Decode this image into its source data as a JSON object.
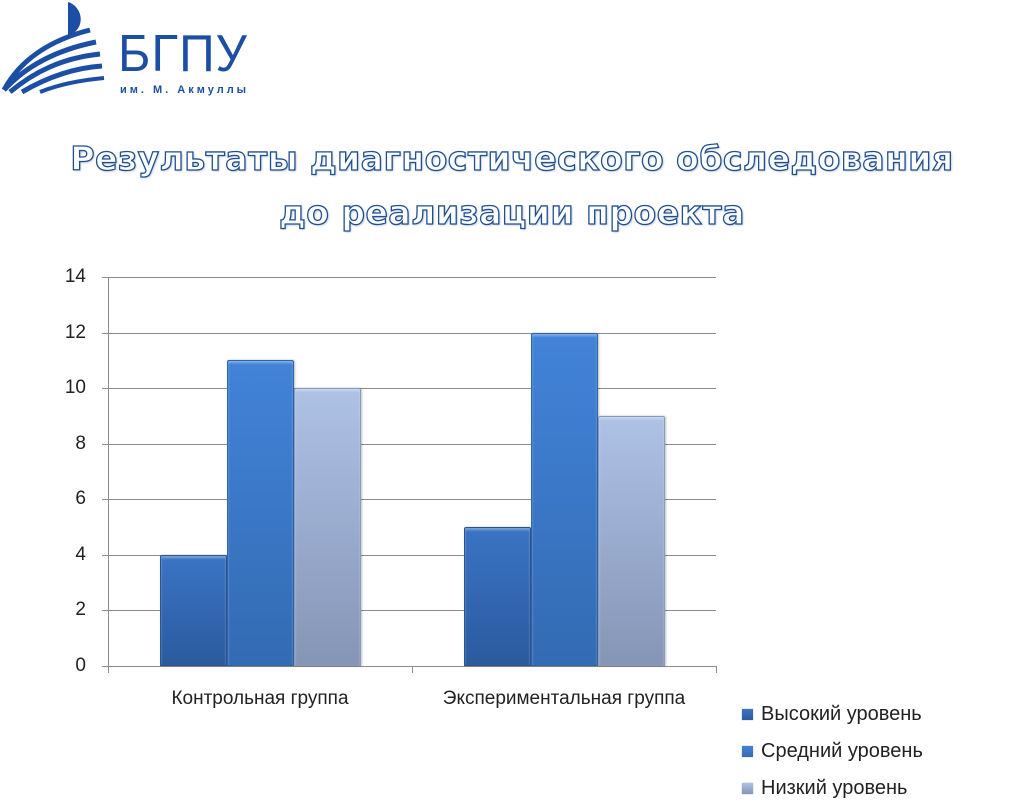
{
  "logo": {
    "name": "БГПУ",
    "subtitle": "им. М. Акмуллы"
  },
  "title": {
    "line1": "Результаты диагностического обследования",
    "line2": "до реализации проекта"
  },
  "colors": {
    "high": "#2f62a8",
    "mid": "#3b79cc",
    "low": "#9fb1d6",
    "logo": "#1c4fa3",
    "title_outline": "#1f4f8f"
  },
  "chart_data": {
    "type": "bar",
    "title": "Результаты диагностического обследования до реализации проекта",
    "xlabel": "",
    "ylabel": "",
    "categories": [
      "Контрольная группа",
      "Экспериментальная группа"
    ],
    "series": [
      {
        "name": "Высокий уровень",
        "values": [
          4,
          5
        ]
      },
      {
        "name": "Средний уровень",
        "values": [
          11,
          12
        ]
      },
      {
        "name": "Низкий уровень",
        "values": [
          10,
          9
        ]
      }
    ],
    "ylim": [
      0,
      14
    ],
    "yticks": [
      "0",
      "2",
      "4",
      "6",
      "8",
      "10",
      "12",
      "14"
    ],
    "grid": true,
    "legend_position": "right"
  },
  "legend": {
    "items": [
      {
        "label": "Высокий уровень"
      },
      {
        "label": "Средний уровень"
      },
      {
        "label": "Низкий уровень"
      }
    ]
  }
}
